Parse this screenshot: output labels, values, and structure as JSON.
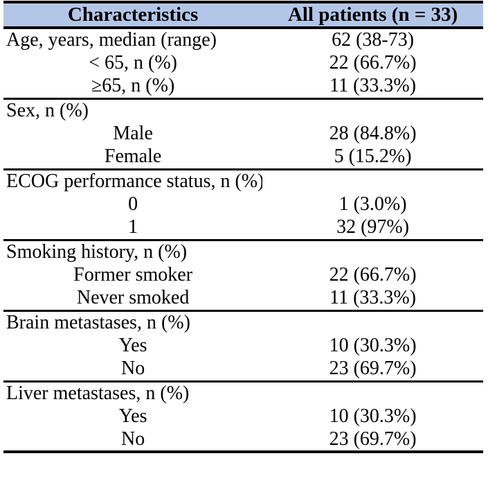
{
  "table": {
    "columns": [
      "Characteristics",
      "All patients (n = 33)"
    ],
    "colors": {
      "header_bg": "#b4c6e7",
      "border": "#000000",
      "text": "#000000"
    },
    "sections": [
      {
        "name": "age",
        "rows": [
          {
            "label": "Age, years, median (range)",
            "value": "62 (38-73)",
            "type": "section-header"
          },
          {
            "label": "< 65, n (%)",
            "value": "22 (66.7%)",
            "type": "sub"
          },
          {
            "label": "≥65, n (%)",
            "value": "11 (33.3%)",
            "type": "sub"
          }
        ]
      },
      {
        "name": "sex",
        "rows": [
          {
            "label": "Sex, n (%)",
            "value": "",
            "type": "section-header"
          },
          {
            "label": "Male",
            "value": "28 (84.8%)",
            "type": "sub"
          },
          {
            "label": "Female",
            "value": "5 (15.2%)",
            "type": "sub"
          }
        ]
      },
      {
        "name": "ecog-performance-status",
        "rows": [
          {
            "label": "ECOG performance status, n (%)",
            "value": "",
            "type": "section-header"
          },
          {
            "label": "0",
            "value": "1 (3.0%)",
            "type": "sub"
          },
          {
            "label": "1",
            "value": "32 (97%)",
            "type": "sub"
          }
        ]
      },
      {
        "name": "smoking-history",
        "rows": [
          {
            "label": "Smoking history, n (%)",
            "value": "",
            "type": "section-header"
          },
          {
            "label": "Former smoker",
            "value": "22 (66.7%)",
            "type": "sub"
          },
          {
            "label": "Never smoked",
            "value": "11 (33.3%)",
            "type": "sub"
          }
        ]
      },
      {
        "name": "brain-metastases",
        "rows": [
          {
            "label": "Brain metastases, n (%)",
            "value": "",
            "type": "section-header"
          },
          {
            "label": "Yes",
            "value": "10 (30.3%)",
            "type": "sub"
          },
          {
            "label": "No",
            "value": "23 (69.7%)",
            "type": "sub"
          }
        ]
      },
      {
        "name": "liver-metastases",
        "rows": [
          {
            "label": "Liver metastases, n (%)",
            "value": "",
            "type": "section-header"
          },
          {
            "label": "Yes",
            "value": "10 (30.3%)",
            "type": "sub"
          },
          {
            "label": "No",
            "value": "23 (69.7%)",
            "type": "sub"
          }
        ]
      }
    ]
  }
}
